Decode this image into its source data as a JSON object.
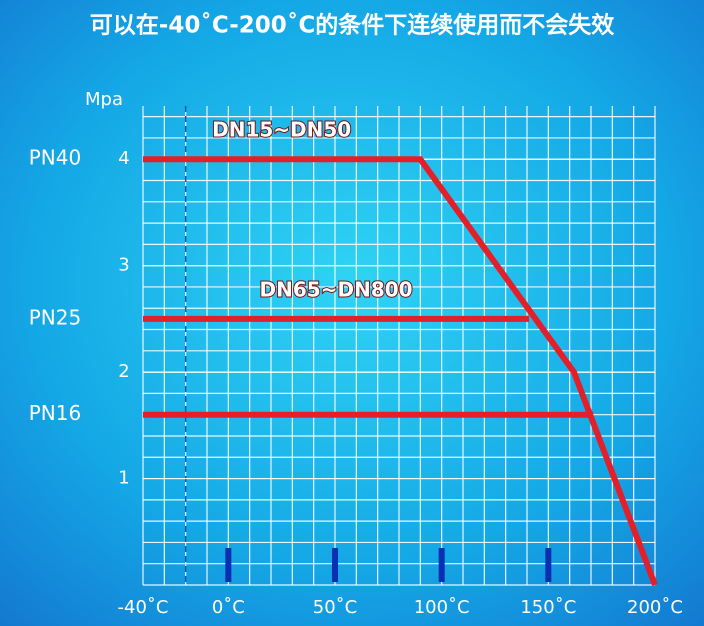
{
  "chart_data": {
    "type": "line",
    "title": "可以在-40˚C-200˚C的条件下连续使用而不会失效",
    "y_label": "Mpa",
    "xlim": [
      -40,
      200
    ],
    "ylim": [
      0,
      4.5
    ],
    "xticks": [
      {
        "value": -40,
        "label": "-40˚C"
      },
      {
        "value": 0,
        "label": "0˚C"
      },
      {
        "value": 50,
        "label": "50˚C"
      },
      {
        "value": 100,
        "label": "100˚C"
      },
      {
        "value": 150,
        "label": "150˚C"
      },
      {
        "value": 200,
        "label": "200˚C"
      }
    ],
    "yticks": [
      1,
      2,
      3,
      4
    ],
    "pn_labels": [
      {
        "value": 4,
        "label": "PN40"
      },
      {
        "value": 2.5,
        "label": "PN25"
      },
      {
        "value": 1.6,
        "label": "PN16"
      }
    ],
    "grid": true,
    "grid_step_x": 10,
    "grid_step_y": 0.2,
    "dashed_x": -20,
    "series": [
      {
        "name": "DN15~DN50",
        "color": "#e3202a",
        "x": [
          -40,
          90,
          162,
          200
        ],
        "values": [
          4,
          4,
          2,
          0
        ]
      },
      {
        "name": "DN65~DN800",
        "color": "#e3202a",
        "x": [
          -40,
          141
        ],
        "values": [
          2.5,
          2.5
        ]
      },
      {
        "color": "#e3202a",
        "x": [
          -40,
          171
        ],
        "values": [
          1.6,
          1.6
        ]
      }
    ]
  }
}
